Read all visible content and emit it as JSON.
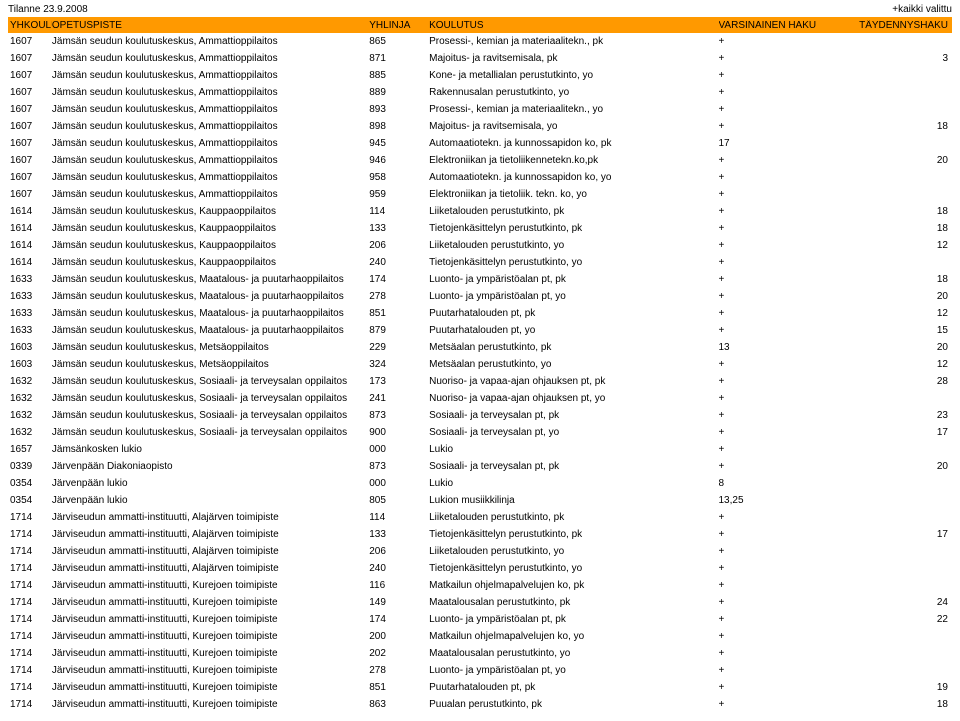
{
  "meta": {
    "date_label": "Tilanne 23.9.2008",
    "filter_label": "+kaikki valittu"
  },
  "columns": {
    "code": "YHKOULU",
    "name": "OPETUSPISTE",
    "linja": "YHLINJA",
    "koulutus": "KOULUTUS",
    "varsinainen": "VARSINAINEN HAKU",
    "taydennys": "TÄYDENNYSHAKU"
  },
  "rows": [
    {
      "code": "1607",
      "name": "Jämsän seudun koulutuskeskus, Ammattioppilaitos",
      "linja": "865",
      "koulutus": "Prosessi-, kemian ja materiaalitekn., pk",
      "var": "+",
      "tay": ""
    },
    {
      "code": "1607",
      "name": "Jämsän seudun koulutuskeskus, Ammattioppilaitos",
      "linja": "871",
      "koulutus": "Majoitus- ja ravitsemisala, pk",
      "var": "+",
      "tay": "3"
    },
    {
      "code": "1607",
      "name": "Jämsän seudun koulutuskeskus, Ammattioppilaitos",
      "linja": "885",
      "koulutus": "Kone- ja metallialan perustutkinto, yo",
      "var": "+",
      "tay": ""
    },
    {
      "code": "1607",
      "name": "Jämsän seudun koulutuskeskus, Ammattioppilaitos",
      "linja": "889",
      "koulutus": "Rakennusalan perustutkinto, yo",
      "var": "+",
      "tay": ""
    },
    {
      "code": "1607",
      "name": "Jämsän seudun koulutuskeskus, Ammattioppilaitos",
      "linja": "893",
      "koulutus": "Prosessi-, kemian ja materiaalitekn., yo",
      "var": "+",
      "tay": ""
    },
    {
      "code": "1607",
      "name": "Jämsän seudun koulutuskeskus, Ammattioppilaitos",
      "linja": "898",
      "koulutus": "Majoitus- ja ravitsemisala, yo",
      "var": "+",
      "tay": "18"
    },
    {
      "code": "1607",
      "name": "Jämsän seudun koulutuskeskus, Ammattioppilaitos",
      "linja": "945",
      "koulutus": "Automaatiotekn. ja kunnossapidon ko, pk",
      "var": "17",
      "tay": ""
    },
    {
      "code": "1607",
      "name": "Jämsän seudun koulutuskeskus, Ammattioppilaitos",
      "linja": "946",
      "koulutus": "Elektroniikan ja tietoliikennetekn.ko,pk",
      "var": "+",
      "tay": "20"
    },
    {
      "code": "1607",
      "name": "Jämsän seudun koulutuskeskus, Ammattioppilaitos",
      "linja": "958",
      "koulutus": "Automaatiotekn. ja kunnossapidon ko, yo",
      "var": "+",
      "tay": ""
    },
    {
      "code": "1607",
      "name": "Jämsän seudun koulutuskeskus, Ammattioppilaitos",
      "linja": "959",
      "koulutus": "Elektroniikan ja tietoliik. tekn. ko, yo",
      "var": "+",
      "tay": ""
    },
    {
      "code": "1614",
      "name": "Jämsän seudun koulutuskeskus, Kauppaoppilaitos",
      "linja": "114",
      "koulutus": "Liiketalouden perustutkinto, pk",
      "var": "+",
      "tay": "18"
    },
    {
      "code": "1614",
      "name": "Jämsän seudun koulutuskeskus, Kauppaoppilaitos",
      "linja": "133",
      "koulutus": "Tietojenkäsittelyn perustutkinto, pk",
      "var": "+",
      "tay": "18"
    },
    {
      "code": "1614",
      "name": "Jämsän seudun koulutuskeskus, Kauppaoppilaitos",
      "linja": "206",
      "koulutus": "Liiketalouden perustutkinto, yo",
      "var": "+",
      "tay": "12"
    },
    {
      "code": "1614",
      "name": "Jämsän seudun koulutuskeskus, Kauppaoppilaitos",
      "linja": "240",
      "koulutus": "Tietojenkäsittelyn perustutkinto, yo",
      "var": "+",
      "tay": ""
    },
    {
      "code": "1633",
      "name": "Jämsän seudun koulutuskeskus, Maatalous- ja puutarhaoppilaitos",
      "linja": "174",
      "koulutus": "Luonto- ja ympäristöalan pt, pk",
      "var": "+",
      "tay": "18"
    },
    {
      "code": "1633",
      "name": "Jämsän seudun koulutuskeskus, Maatalous- ja puutarhaoppilaitos",
      "linja": "278",
      "koulutus": "Luonto- ja ympäristöalan pt, yo",
      "var": "+",
      "tay": "20"
    },
    {
      "code": "1633",
      "name": "Jämsän seudun koulutuskeskus, Maatalous- ja puutarhaoppilaitos",
      "linja": "851",
      "koulutus": "Puutarhatalouden pt, pk",
      "var": "+",
      "tay": "12"
    },
    {
      "code": "1633",
      "name": "Jämsän seudun koulutuskeskus, Maatalous- ja puutarhaoppilaitos",
      "linja": "879",
      "koulutus": "Puutarhatalouden pt, yo",
      "var": "+",
      "tay": "15"
    },
    {
      "code": "1603",
      "name": "Jämsän seudun koulutuskeskus, Metsäoppilaitos",
      "linja": "229",
      "koulutus": "Metsäalan perustutkinto, pk",
      "var": "13",
      "tay": "20"
    },
    {
      "code": "1603",
      "name": "Jämsän seudun koulutuskeskus, Metsäoppilaitos",
      "linja": "324",
      "koulutus": "Metsäalan perustutkinto, yo",
      "var": "+",
      "tay": "12"
    },
    {
      "code": "1632",
      "name": "Jämsän seudun koulutuskeskus, Sosiaali- ja terveysalan oppilaitos",
      "linja": "173",
      "koulutus": "Nuoriso- ja vapaa-ajan ohjauksen pt, pk",
      "var": "+",
      "tay": "28"
    },
    {
      "code": "1632",
      "name": "Jämsän seudun koulutuskeskus, Sosiaali- ja terveysalan oppilaitos",
      "linja": "241",
      "koulutus": "Nuoriso- ja vapaa-ajan ohjauksen pt, yo",
      "var": "+",
      "tay": ""
    },
    {
      "code": "1632",
      "name": "Jämsän seudun koulutuskeskus, Sosiaali- ja terveysalan oppilaitos",
      "linja": "873",
      "koulutus": "Sosiaali- ja terveysalan pt, pk",
      "var": "+",
      "tay": "23"
    },
    {
      "code": "1632",
      "name": "Jämsän seudun koulutuskeskus, Sosiaali- ja terveysalan oppilaitos",
      "linja": "900",
      "koulutus": "Sosiaali- ja terveysalan pt, yo",
      "var": "+",
      "tay": "17"
    },
    {
      "code": "1657",
      "name": "Jämsänkosken lukio",
      "linja": "000",
      "koulutus": "Lukio",
      "var": "+",
      "tay": ""
    },
    {
      "code": "0339",
      "name": "Järvenpään Diakoniaopisto",
      "linja": "873",
      "koulutus": "Sosiaali- ja terveysalan pt, pk",
      "var": "+",
      "tay": "20"
    },
    {
      "code": "0354",
      "name": "Järvenpään lukio",
      "linja": "000",
      "koulutus": "Lukio",
      "var": "8",
      "tay": ""
    },
    {
      "code": "0354",
      "name": "Järvenpään lukio",
      "linja": "805",
      "koulutus": "Lukion musiikkilinja",
      "var": "13,25",
      "tay": ""
    },
    {
      "code": "1714",
      "name": "Järviseudun ammatti-instituutti, Alajärven toimipiste",
      "linja": "114",
      "koulutus": "Liiketalouden perustutkinto, pk",
      "var": "+",
      "tay": ""
    },
    {
      "code": "1714",
      "name": "Järviseudun ammatti-instituutti, Alajärven toimipiste",
      "linja": "133",
      "koulutus": "Tietojenkäsittelyn perustutkinto, pk",
      "var": "+",
      "tay": "17"
    },
    {
      "code": "1714",
      "name": "Järviseudun ammatti-instituutti, Alajärven toimipiste",
      "linja": "206",
      "koulutus": "Liiketalouden perustutkinto, yo",
      "var": "+",
      "tay": ""
    },
    {
      "code": "1714",
      "name": "Järviseudun ammatti-instituutti, Alajärven toimipiste",
      "linja": "240",
      "koulutus": "Tietojenkäsittelyn perustutkinto, yo",
      "var": "+",
      "tay": ""
    },
    {
      "code": "1714",
      "name": "Järviseudun ammatti-instituutti, Kurejoen toimipiste",
      "linja": "116",
      "koulutus": "Matkailun ohjelmapalvelujen ko, pk",
      "var": "+",
      "tay": ""
    },
    {
      "code": "1714",
      "name": "Järviseudun ammatti-instituutti, Kurejoen toimipiste",
      "linja": "149",
      "koulutus": "Maatalousalan perustutkinto, pk",
      "var": "+",
      "tay": "24"
    },
    {
      "code": "1714",
      "name": "Järviseudun ammatti-instituutti, Kurejoen toimipiste",
      "linja": "174",
      "koulutus": "Luonto- ja ympäristöalan pt, pk",
      "var": "+",
      "tay": "22"
    },
    {
      "code": "1714",
      "name": "Järviseudun ammatti-instituutti, Kurejoen toimipiste",
      "linja": "200",
      "koulutus": "Matkailun ohjelmapalvelujen ko, yo",
      "var": "+",
      "tay": ""
    },
    {
      "code": "1714",
      "name": "Järviseudun ammatti-instituutti, Kurejoen toimipiste",
      "linja": "202",
      "koulutus": "Maatalousalan perustutkinto, yo",
      "var": "+",
      "tay": ""
    },
    {
      "code": "1714",
      "name": "Järviseudun ammatti-instituutti, Kurejoen toimipiste",
      "linja": "278",
      "koulutus": "Luonto- ja ympäristöalan pt, yo",
      "var": "+",
      "tay": ""
    },
    {
      "code": "1714",
      "name": "Järviseudun ammatti-instituutti, Kurejoen toimipiste",
      "linja": "851",
      "koulutus": "Puutarhatalouden pt, pk",
      "var": "+",
      "tay": "19"
    },
    {
      "code": "1714",
      "name": "Järviseudun ammatti-instituutti, Kurejoen toimipiste",
      "linja": "863",
      "koulutus": "Puualan perustutkinto, pk",
      "var": "+",
      "tay": "18"
    }
  ]
}
